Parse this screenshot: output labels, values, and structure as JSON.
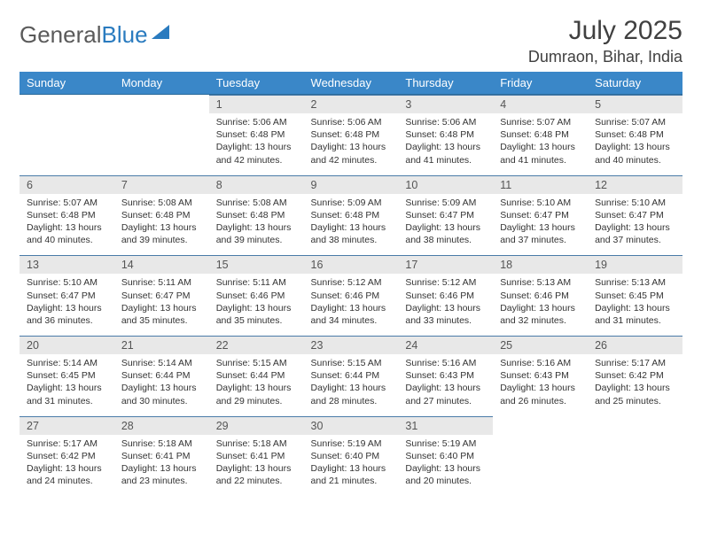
{
  "logo": {
    "part1": "General",
    "part2": "Blue"
  },
  "title": "July 2025",
  "location": "Dumraon, Bihar, India",
  "weekdays": [
    "Sunday",
    "Monday",
    "Tuesday",
    "Wednesday",
    "Thursday",
    "Friday",
    "Saturday"
  ],
  "colors": {
    "header_bg": "#3a87c8",
    "header_text": "#ffffff",
    "daynum_bg": "#e8e8e8",
    "cell_border": "#4a7ba8",
    "title_color": "#404040",
    "logo_gray": "#5a5a5a",
    "logo_blue": "#2a7bbf"
  },
  "grid": [
    [
      null,
      null,
      {
        "n": "1",
        "sr": "5:06 AM",
        "ss": "6:48 PM",
        "dl": "13 hours and 42 minutes."
      },
      {
        "n": "2",
        "sr": "5:06 AM",
        "ss": "6:48 PM",
        "dl": "13 hours and 42 minutes."
      },
      {
        "n": "3",
        "sr": "5:06 AM",
        "ss": "6:48 PM",
        "dl": "13 hours and 41 minutes."
      },
      {
        "n": "4",
        "sr": "5:07 AM",
        "ss": "6:48 PM",
        "dl": "13 hours and 41 minutes."
      },
      {
        "n": "5",
        "sr": "5:07 AM",
        "ss": "6:48 PM",
        "dl": "13 hours and 40 minutes."
      }
    ],
    [
      {
        "n": "6",
        "sr": "5:07 AM",
        "ss": "6:48 PM",
        "dl": "13 hours and 40 minutes."
      },
      {
        "n": "7",
        "sr": "5:08 AM",
        "ss": "6:48 PM",
        "dl": "13 hours and 39 minutes."
      },
      {
        "n": "8",
        "sr": "5:08 AM",
        "ss": "6:48 PM",
        "dl": "13 hours and 39 minutes."
      },
      {
        "n": "9",
        "sr": "5:09 AM",
        "ss": "6:48 PM",
        "dl": "13 hours and 38 minutes."
      },
      {
        "n": "10",
        "sr": "5:09 AM",
        "ss": "6:47 PM",
        "dl": "13 hours and 38 minutes."
      },
      {
        "n": "11",
        "sr": "5:10 AM",
        "ss": "6:47 PM",
        "dl": "13 hours and 37 minutes."
      },
      {
        "n": "12",
        "sr": "5:10 AM",
        "ss": "6:47 PM",
        "dl": "13 hours and 37 minutes."
      }
    ],
    [
      {
        "n": "13",
        "sr": "5:10 AM",
        "ss": "6:47 PM",
        "dl": "13 hours and 36 minutes."
      },
      {
        "n": "14",
        "sr": "5:11 AM",
        "ss": "6:47 PM",
        "dl": "13 hours and 35 minutes."
      },
      {
        "n": "15",
        "sr": "5:11 AM",
        "ss": "6:46 PM",
        "dl": "13 hours and 35 minutes."
      },
      {
        "n": "16",
        "sr": "5:12 AM",
        "ss": "6:46 PM",
        "dl": "13 hours and 34 minutes."
      },
      {
        "n": "17",
        "sr": "5:12 AM",
        "ss": "6:46 PM",
        "dl": "13 hours and 33 minutes."
      },
      {
        "n": "18",
        "sr": "5:13 AM",
        "ss": "6:46 PM",
        "dl": "13 hours and 32 minutes."
      },
      {
        "n": "19",
        "sr": "5:13 AM",
        "ss": "6:45 PM",
        "dl": "13 hours and 31 minutes."
      }
    ],
    [
      {
        "n": "20",
        "sr": "5:14 AM",
        "ss": "6:45 PM",
        "dl": "13 hours and 31 minutes."
      },
      {
        "n": "21",
        "sr": "5:14 AM",
        "ss": "6:44 PM",
        "dl": "13 hours and 30 minutes."
      },
      {
        "n": "22",
        "sr": "5:15 AM",
        "ss": "6:44 PM",
        "dl": "13 hours and 29 minutes."
      },
      {
        "n": "23",
        "sr": "5:15 AM",
        "ss": "6:44 PM",
        "dl": "13 hours and 28 minutes."
      },
      {
        "n": "24",
        "sr": "5:16 AM",
        "ss": "6:43 PM",
        "dl": "13 hours and 27 minutes."
      },
      {
        "n": "25",
        "sr": "5:16 AM",
        "ss": "6:43 PM",
        "dl": "13 hours and 26 minutes."
      },
      {
        "n": "26",
        "sr": "5:17 AM",
        "ss": "6:42 PM",
        "dl": "13 hours and 25 minutes."
      }
    ],
    [
      {
        "n": "27",
        "sr": "5:17 AM",
        "ss": "6:42 PM",
        "dl": "13 hours and 24 minutes."
      },
      {
        "n": "28",
        "sr": "5:18 AM",
        "ss": "6:41 PM",
        "dl": "13 hours and 23 minutes."
      },
      {
        "n": "29",
        "sr": "5:18 AM",
        "ss": "6:41 PM",
        "dl": "13 hours and 22 minutes."
      },
      {
        "n": "30",
        "sr": "5:19 AM",
        "ss": "6:40 PM",
        "dl": "13 hours and 21 minutes."
      },
      {
        "n": "31",
        "sr": "5:19 AM",
        "ss": "6:40 PM",
        "dl": "13 hours and 20 minutes."
      },
      null,
      null
    ]
  ],
  "labels": {
    "sunrise": "Sunrise: ",
    "sunset": "Sunset: ",
    "daylight": "Daylight: "
  }
}
